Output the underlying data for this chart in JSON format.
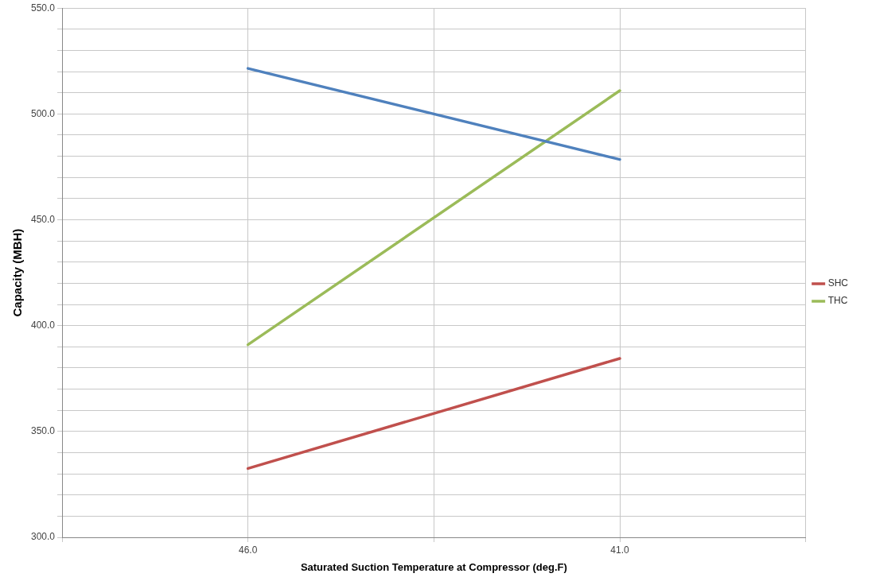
{
  "chart_data": {
    "type": "line",
    "xlabel": "Saturated Suction Temperature at Compressor (deg.F)",
    "ylabel": "Capacity (MBH)",
    "x": [
      46,
      41
    ],
    "xlim": [
      48.5,
      38.5
    ],
    "xticks": [
      {
        "value": 48.5,
        "label": null
      },
      {
        "value": 46,
        "label": "46.0"
      },
      {
        "value": 43.5,
        "label": null
      },
      {
        "value": 41,
        "label": "41.0"
      },
      {
        "value": 38.5,
        "label": null
      }
    ],
    "ylim": [
      300,
      550
    ],
    "yticks": [
      {
        "value": 300,
        "label": "300.0"
      },
      {
        "value": 310,
        "label": null
      },
      {
        "value": 320,
        "label": null
      },
      {
        "value": 330,
        "label": null
      },
      {
        "value": 340,
        "label": null
      },
      {
        "value": 350,
        "label": "350.0"
      },
      {
        "value": 360,
        "label": null
      },
      {
        "value": 370,
        "label": null
      },
      {
        "value": 380,
        "label": null
      },
      {
        "value": 390,
        "label": null
      },
      {
        "value": 400,
        "label": "400.0"
      },
      {
        "value": 410,
        "label": null
      },
      {
        "value": 420,
        "label": null
      },
      {
        "value": 430,
        "label": null
      },
      {
        "value": 440,
        "label": null
      },
      {
        "value": 450,
        "label": "450.0"
      },
      {
        "value": 460,
        "label": null
      },
      {
        "value": 470,
        "label": null
      },
      {
        "value": 480,
        "label": null
      },
      {
        "value": 490,
        "label": null
      },
      {
        "value": 500,
        "label": "500.0"
      },
      {
        "value": 510,
        "label": null
      },
      {
        "value": 520,
        "label": null
      },
      {
        "value": 530,
        "label": null
      },
      {
        "value": 540,
        "label": null
      },
      {
        "value": 550,
        "label": "550.0"
      }
    ],
    "series": [
      {
        "color": "#4f81bd",
        "values": [
          521.5,
          478.5
        ]
      },
      {
        "name": "SHC",
        "color": "#c0504d",
        "values": [
          332.5,
          384.5
        ]
      },
      {
        "name": "THC",
        "color": "#9bbb59",
        "values": [
          391,
          511
        ]
      }
    ],
    "grid": true,
    "legend": "right",
    "marker": "none",
    "line_style": "solid"
  }
}
